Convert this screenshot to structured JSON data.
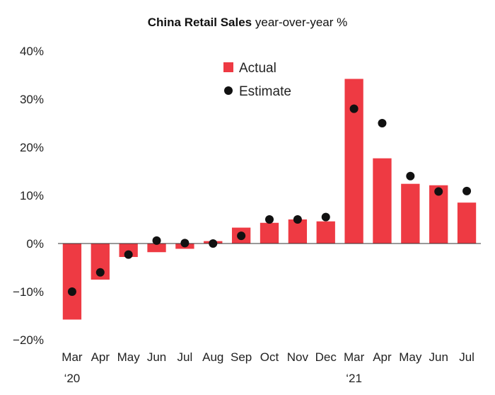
{
  "chart_data": {
    "type": "bar",
    "title": "China Retail Sales",
    "subtitle": "year-over-year %",
    "xlabel": "",
    "ylabel": "",
    "ylim": [
      -20,
      40
    ],
    "yticks": [
      40,
      30,
      20,
      10,
      0,
      -10,
      -20
    ],
    "ytick_labels": [
      "40%",
      "30%",
      "20%",
      "10%",
      "0%",
      "−10%",
      "−20%"
    ],
    "categories": [
      "Mar",
      "Apr",
      "May",
      "Jun",
      "Jul",
      "Aug",
      "Sep",
      "Oct",
      "Nov",
      "Dec",
      "Mar",
      "Apr",
      "May",
      "Jun",
      "Jul"
    ],
    "year_labels": [
      "‘20",
      "",
      "",
      "",
      "",
      "",
      "",
      "",
      "",
      "",
      "‘21",
      "",
      "",
      "",
      ""
    ],
    "series": [
      {
        "name": "Actual",
        "type": "bar",
        "color": "#ee3a43",
        "values": [
          -15.8,
          -7.5,
          -2.8,
          -1.8,
          -1.1,
          0.5,
          3.3,
          4.3,
          5.0,
          4.6,
          34.2,
          17.7,
          12.4,
          12.1,
          8.5
        ]
      },
      {
        "name": "Estimate",
        "type": "scatter",
        "color": "#111111",
        "values": [
          -10.0,
          -6.0,
          -2.3,
          0.6,
          0.1,
          0.0,
          1.6,
          5.0,
          5.0,
          5.5,
          28.0,
          25.0,
          14.0,
          10.8,
          10.9
        ]
      }
    ],
    "legend": {
      "placement": "top-center"
    },
    "grid": false
  }
}
